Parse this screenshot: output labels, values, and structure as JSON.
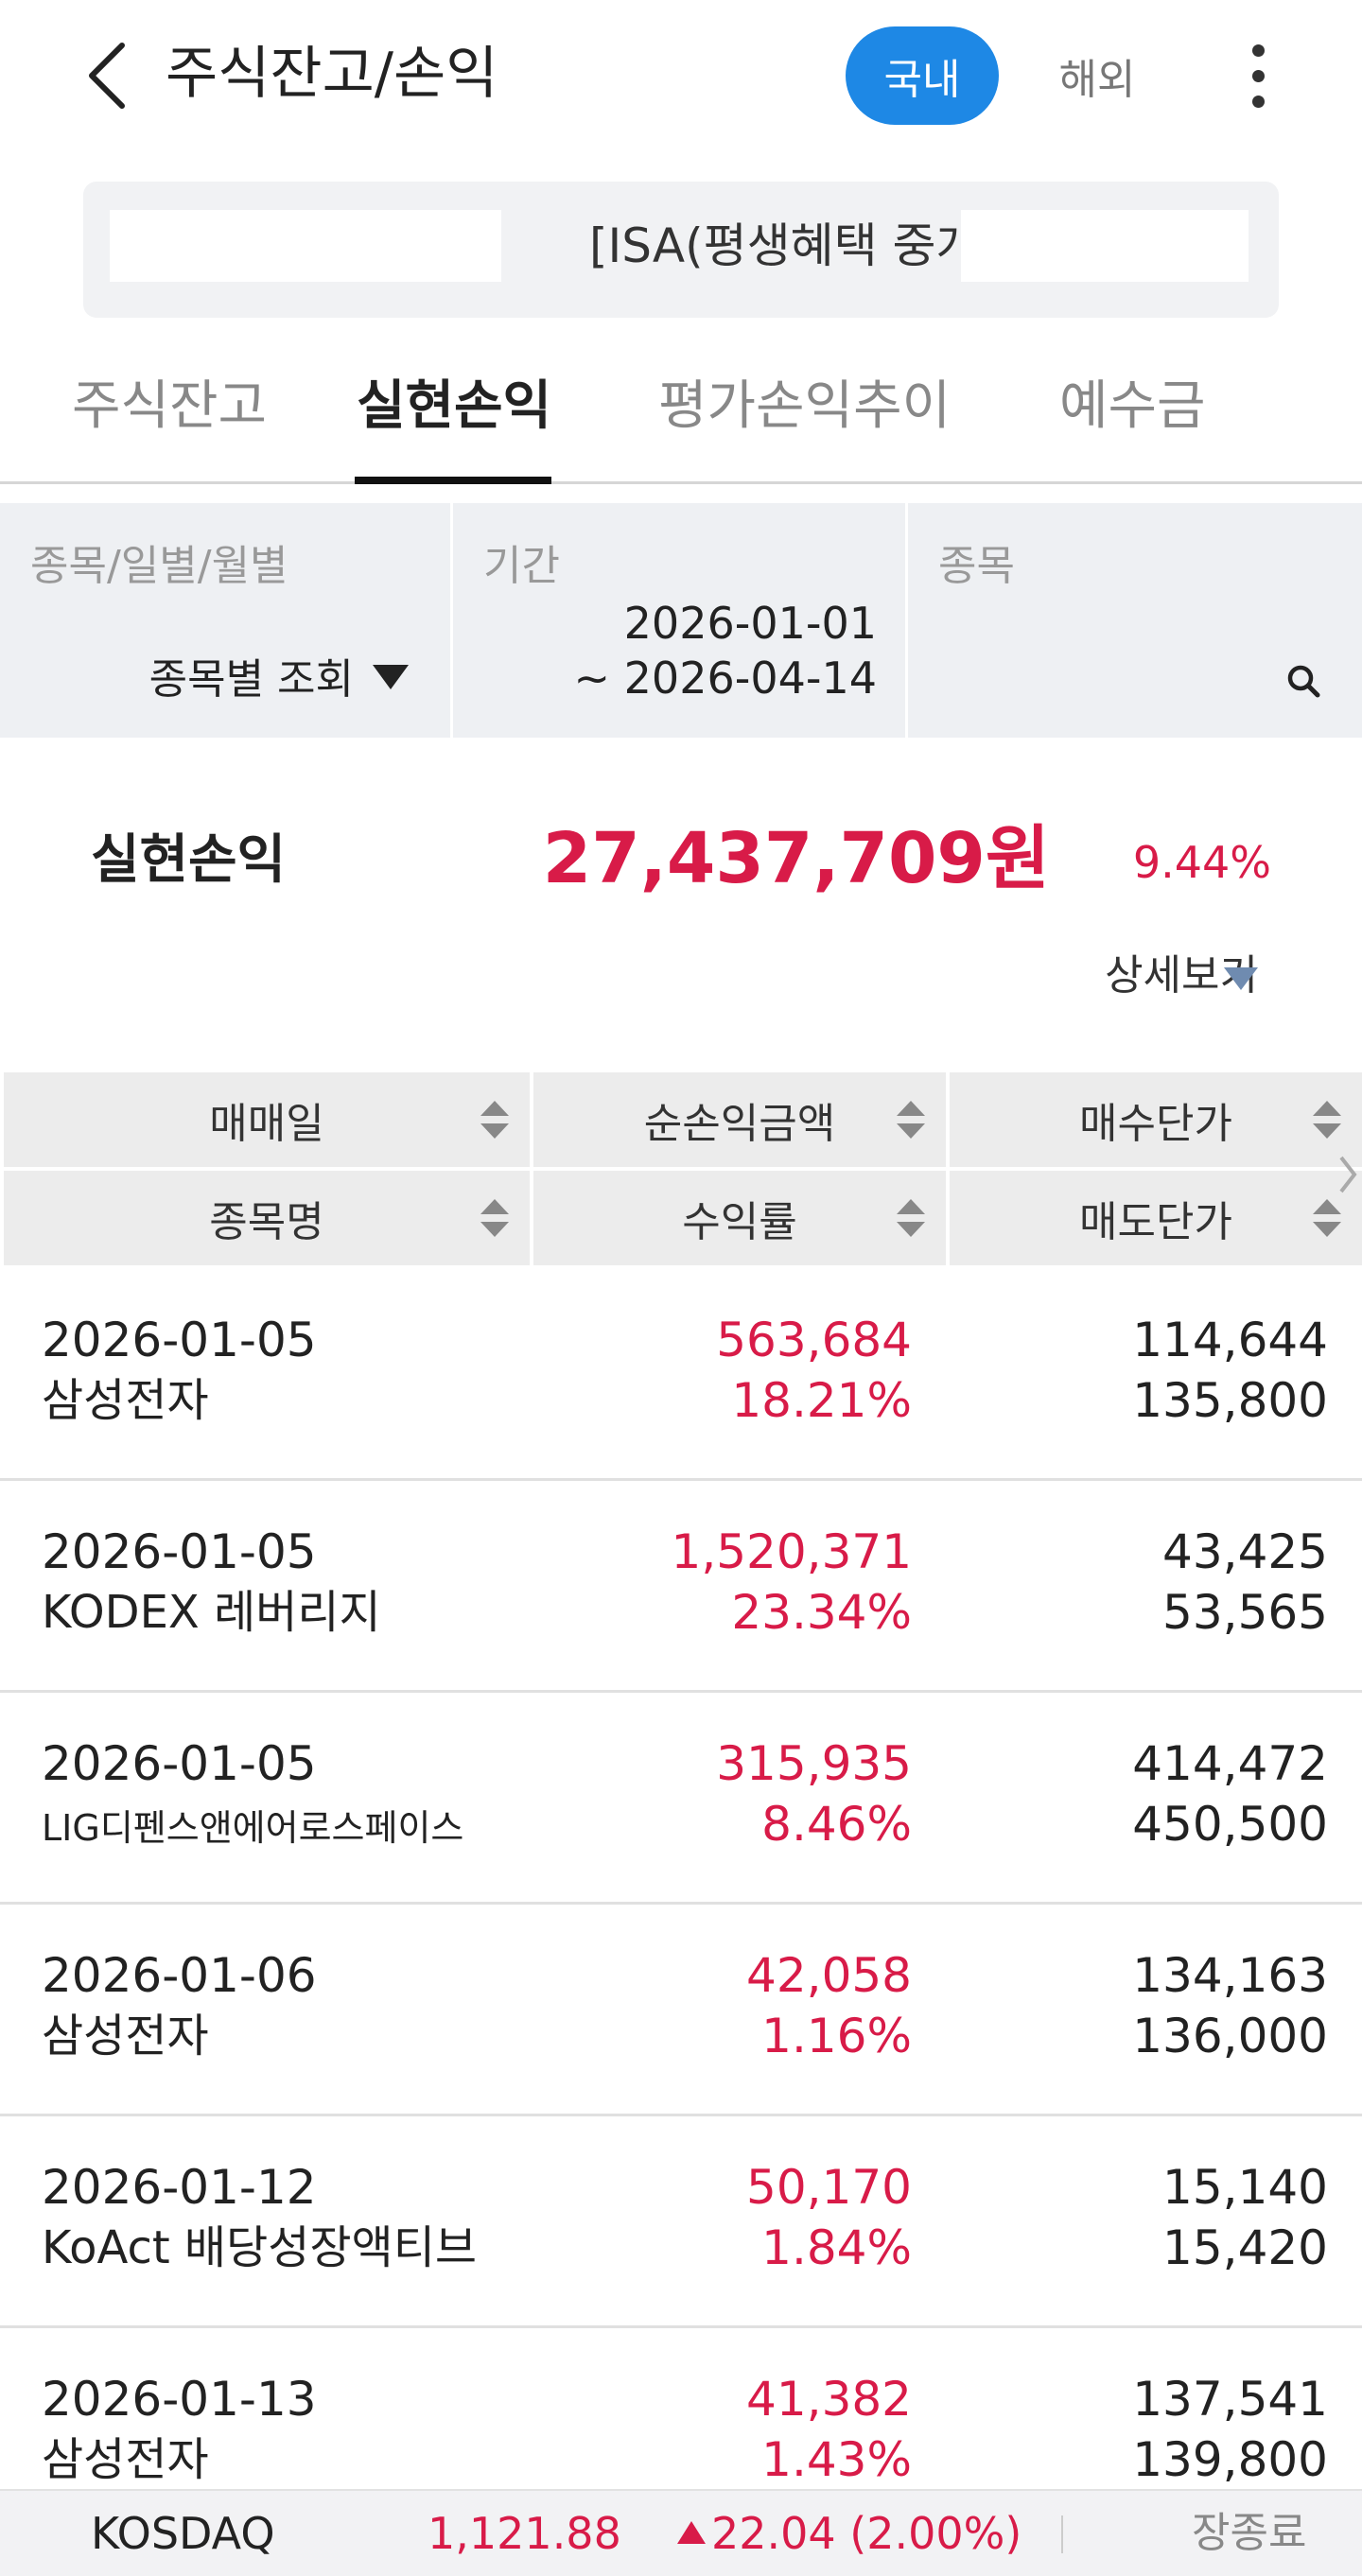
{
  "header": {
    "title": "주식잔고/손익",
    "seg_domestic": "국내",
    "seg_overseas": "해외"
  },
  "account": {
    "label": "[ISA(평생혜택 중개형)"
  },
  "tabs": [
    "주식잔고",
    "실현손익",
    "평가손익추이",
    "예수금"
  ],
  "active_tab": "실현손익",
  "filter": {
    "type_label": "종목/일별/월별",
    "type_value": "종목별 조회",
    "period_label": "기간",
    "period_start": "2026-01-01",
    "period_end": "~ 2026-04-14",
    "stock_label": "종목"
  },
  "summary": {
    "label": "실현손익",
    "amount": "27,437,709원",
    "rate": "9.44%",
    "detail_label": "상세보기"
  },
  "table": {
    "headers": {
      "trade_date": "매매일",
      "net_profit": "순손익금액",
      "buy_price": "매수단가",
      "stock_name": "종목명",
      "return_rate": "수익률",
      "sell_price": "매도단가"
    },
    "rows": [
      {
        "date": "2026-01-05",
        "name": "삼성전자",
        "amount": "563,684",
        "rate": "18.21%",
        "buy": "114,644",
        "sell": "135,800"
      },
      {
        "date": "2026-01-05",
        "name": "KODEX 레버리지",
        "amount": "1,520,371",
        "rate": "23.34%",
        "buy": "43,425",
        "sell": "53,565"
      },
      {
        "date": "2026-01-05",
        "name": "LIG디펜스앤에어로스페이스",
        "amount": "315,935",
        "rate": "8.46%",
        "buy": "414,472",
        "sell": "450,500"
      },
      {
        "date": "2026-01-06",
        "name": "삼성전자",
        "amount": "42,058",
        "rate": "1.16%",
        "buy": "134,163",
        "sell": "136,000"
      },
      {
        "date": "2026-01-12",
        "name": "KoAct 배당성장액티브",
        "amount": "50,170",
        "rate": "1.84%",
        "buy": "15,140",
        "sell": "15,420"
      },
      {
        "date": "2026-01-13",
        "name": "삼성전자",
        "amount": "41,382",
        "rate": "1.43%",
        "buy": "137,541",
        "sell": "139,800"
      }
    ]
  },
  "ticker": {
    "name": "KOSDAQ",
    "value": "1,121.88",
    "change": "22.04 (2.00%)",
    "status": "장종료"
  },
  "colors": {
    "accent_blue": "#1e88e5",
    "profit_red": "#d81b48"
  }
}
